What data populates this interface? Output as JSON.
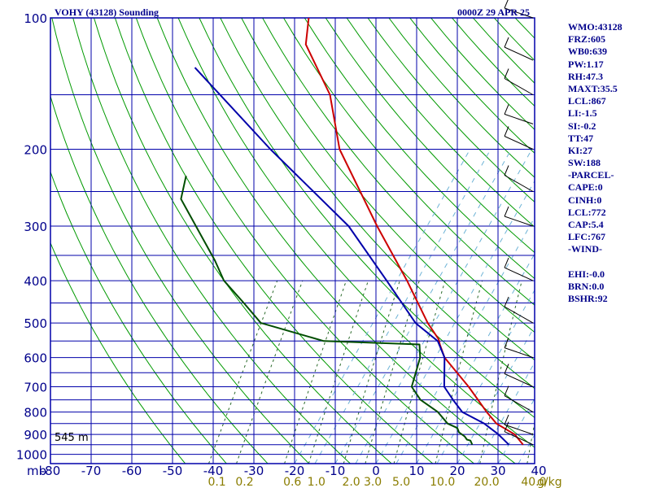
{
  "header": {
    "station": "VOHY (43128) Sounding",
    "datetime": "0000Z 29 APR 25"
  },
  "stats": [
    "WMO:43128",
    "FRZ:605",
    "WB0:639",
    "PW:1.17",
    "RH:47.3",
    "MAXT:35.5",
    "LCL:867",
    "LI:-1.5",
    "SI:-0.2",
    "TT:47",
    "KI:27",
    "SW:188",
    "-PARCEL-",
    "CAPE:0",
    "CINH:0",
    "LCL:772",
    "CAP:5.4",
    "LFC:767",
    "-WIND-",
    "",
    "EHI:-0.0",
    "BRN:0.0",
    "BSHR:92"
  ],
  "chart_data": {
    "type": "line",
    "title": "VOHY (43128) Sounding",
    "ylabel": "mb",
    "xlabel": "",
    "x_range": [
      -80,
      40
    ],
    "y_range": [
      1000,
      100
    ],
    "y_scale": "log",
    "y_axis_direction": "reversed",
    "temperature_skew": true,
    "grid": true,
    "colors": {
      "grid": "#0000aa",
      "dry_adiabats": "#009900",
      "moist_adiabats": "#6db3d6",
      "mixing_ratio": "#2a6a2a",
      "temperature": "#cc0000",
      "dewpoint": "#004d00",
      "parcel": "#0000aa",
      "labels": "#00008b",
      "mixing_labels": "#8a7d00"
    },
    "pressure_ticks": [
      "100",
      "200",
      "300",
      "400",
      "500",
      "600",
      "700",
      "800",
      "900",
      "1000"
    ],
    "temperature_ticks": [
      "-80",
      "-70",
      "-60",
      "-50",
      "-40",
      "-30",
      "-20",
      "-10",
      "0",
      "10",
      "20",
      "30",
      "40"
    ],
    "mixing_ratio_ticks": [
      "0.1",
      "0.2",
      "0.6",
      "1.0",
      "2.0",
      "3.0",
      "5.0",
      "10.0",
      "20.0",
      "40.0"
    ],
    "mixing_ratio_unit": "g/kg",
    "surface_height_label": "545 m",
    "series": [
      {
        "role": "temperature",
        "points": [
          {
            "p": 950,
            "t": 33.5
          },
          {
            "p": 900,
            "t": 30
          },
          {
            "p": 850,
            "t": 24
          },
          {
            "p": 800,
            "t": 20
          },
          {
            "p": 700,
            "t": 12
          },
          {
            "p": 600,
            "t": 2
          },
          {
            "p": 560,
            "t": -1
          },
          {
            "p": 545,
            "t": -2
          },
          {
            "p": 500,
            "t": -7
          },
          {
            "p": 400,
            "t": -18
          },
          {
            "p": 300,
            "t": -33
          },
          {
            "p": 200,
            "t": -53
          },
          {
            "p": 150,
            "t": -63
          },
          {
            "p": 115,
            "t": -76
          },
          {
            "p": 100,
            "t": -79
          }
        ]
      },
      {
        "role": "dewpoint",
        "points": [
          {
            "p": 950,
            "t": 21
          },
          {
            "p": 930,
            "t": 20
          },
          {
            "p": 925,
            "t": 19
          },
          {
            "p": 910,
            "t": 18
          },
          {
            "p": 890,
            "t": 16
          },
          {
            "p": 870,
            "t": 15
          },
          {
            "p": 850,
            "t": 12
          },
          {
            "p": 800,
            "t": 8
          },
          {
            "p": 750,
            "t": 2
          },
          {
            "p": 700,
            "t": -2
          },
          {
            "p": 600,
            "t": -4
          },
          {
            "p": 560,
            "t": -6
          },
          {
            "p": 550,
            "t": -30
          },
          {
            "p": 500,
            "t": -48
          },
          {
            "p": 450,
            "t": -55
          },
          {
            "p": 400,
            "t": -63
          },
          {
            "p": 360,
            "t": -68
          },
          {
            "p": 260,
            "t": -85
          },
          {
            "p": 230,
            "t": -87
          }
        ]
      },
      {
        "role": "parcel",
        "points": [
          {
            "p": 950,
            "t": 30
          },
          {
            "p": 900,
            "t": 26
          },
          {
            "p": 850,
            "t": 21
          },
          {
            "p": 800,
            "t": 14
          },
          {
            "p": 750,
            "t": 10
          },
          {
            "p": 700,
            "t": 6
          },
          {
            "p": 600,
            "t": 2
          },
          {
            "p": 550,
            "t": -2
          },
          {
            "p": 500,
            "t": -10
          },
          {
            "p": 400,
            "t": -23
          },
          {
            "p": 300,
            "t": -40
          },
          {
            "p": 200,
            "t": -70
          },
          {
            "p": 130,
            "t": -100
          }
        ]
      }
    ]
  }
}
